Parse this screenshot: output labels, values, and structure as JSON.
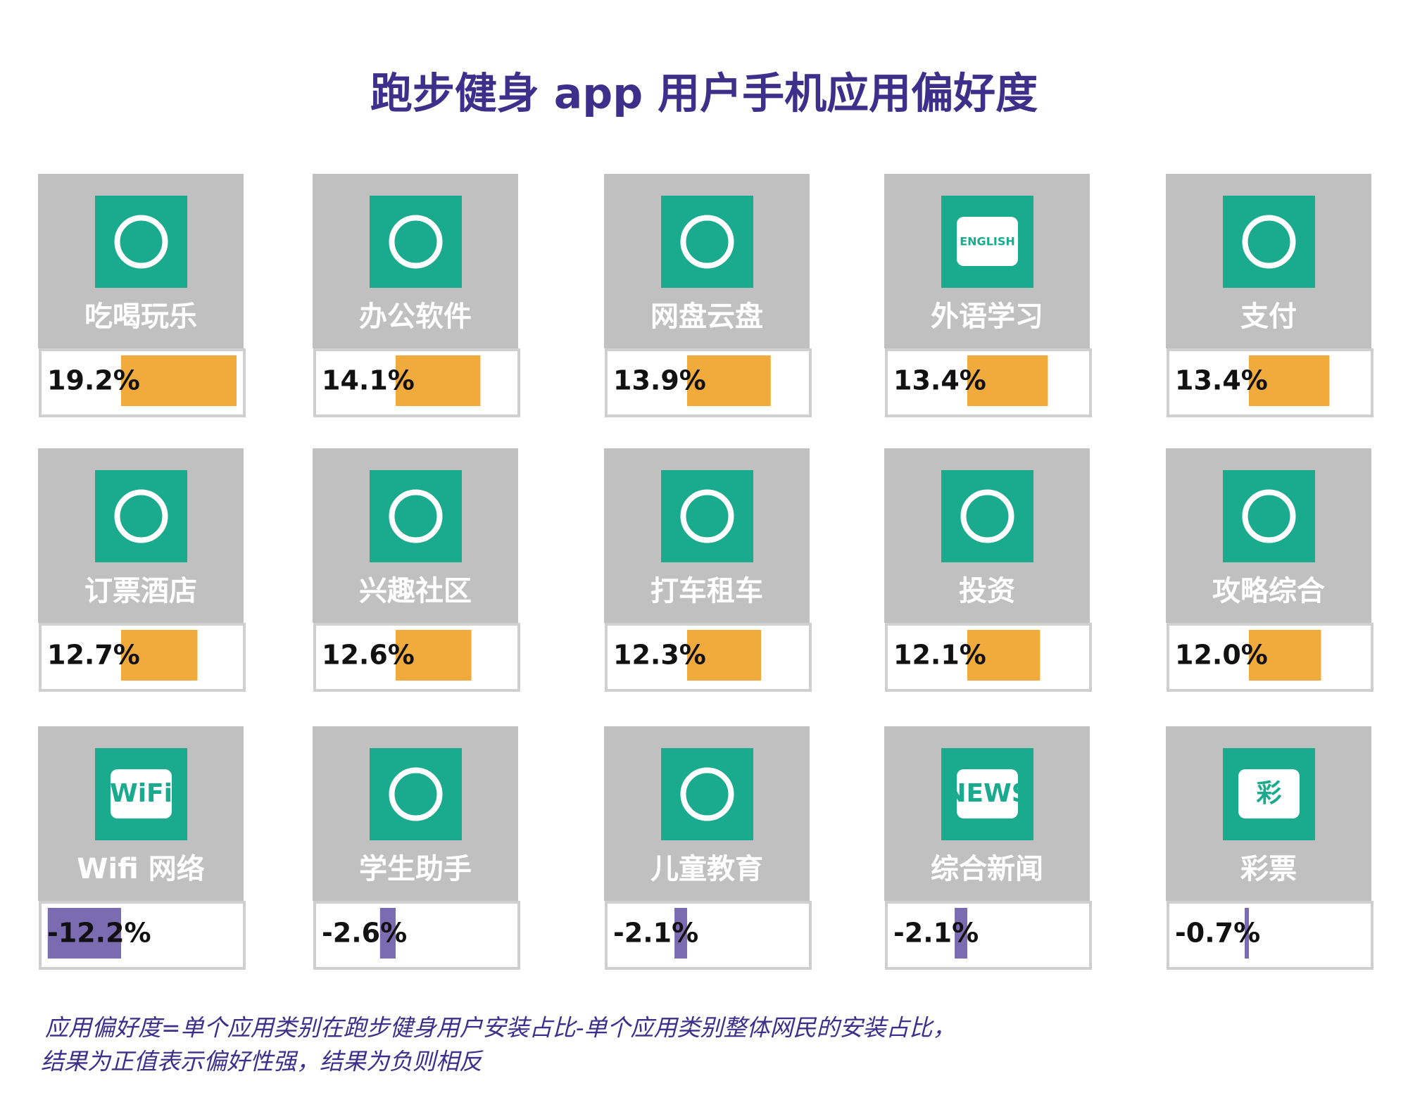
{
  "chart_data": {
    "type": "bar",
    "title": "跑步健身 app 用户手机应用偏好度",
    "categories": [
      "吃喝玩乐",
      "办公软件",
      "网盘云盘",
      "外语学习",
      "支付",
      "订票酒店",
      "兴趣社区",
      "打车租车",
      "投资",
      "攻略综合",
      "Wifi 网络",
      "学生助手",
      "儿童教育",
      "综合新闻",
      "彩票"
    ],
    "values": [
      19.2,
      14.1,
      13.9,
      13.4,
      13.4,
      12.7,
      12.6,
      12.3,
      12.1,
      12.0,
      -12.2,
      -2.6,
      -2.1,
      -2.1,
      -0.7
    ],
    "value_labels": [
      "19.2%",
      "14.1%",
      "13.9%",
      "13.4%",
      "13.4%",
      "12.7%",
      "12.6%",
      "12.3%",
      "12.1%",
      "12.0%",
      "-12.2%",
      "-2.6%",
      "-2.1%",
      "-2.1%",
      "-0.7%"
    ],
    "icon_texts": [
      null,
      null,
      null,
      "ENGLISH",
      null,
      null,
      null,
      null,
      null,
      null,
      "WiFi",
      null,
      null,
      "NEWS",
      "彩"
    ],
    "color": "#f0ab3c",
    "negative_color": "#7b6cb2",
    "notes": [
      "应用偏好度=单个应用类别在跑步健身用户安装占比-单个应用类别整体网民的安装占比，",
      "结果为正值表示偏好性强，结果为负则相反"
    ]
  }
}
